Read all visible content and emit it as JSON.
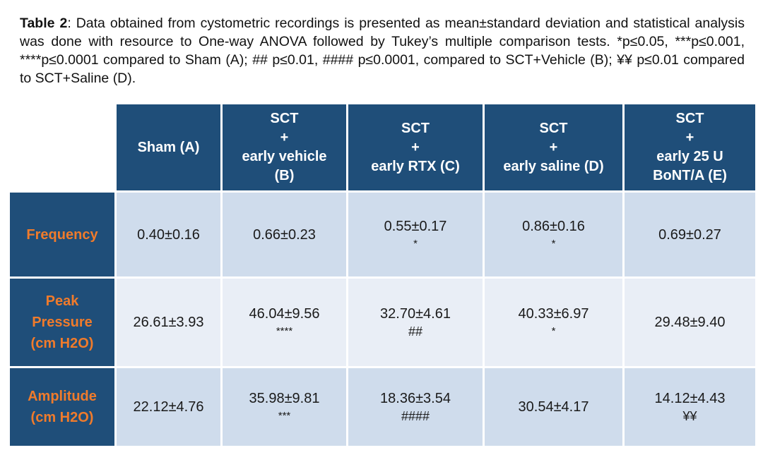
{
  "caption": {
    "lead": "Table 2",
    "text": ": Data obtained from cystometric recordings is presented as mean±standard deviation and statistical analysis was done with resource to One-way ANOVA followed by Tukey’s multiple comparison tests. *p≤0.05, ***p≤0.001, ****p≤0.0001 compared to Sham (A); ## p≤0.01, #### p≤0.0001, compared to SCT+Vehicle (B); ¥¥ p≤0.01 compared to SCT+Saline (D)."
  },
  "table": {
    "columns": [
      {
        "lines": [
          "Sham (A)"
        ]
      },
      {
        "lines": [
          "SCT",
          "+",
          "early vehicle",
          "(B)"
        ]
      },
      {
        "lines": [
          "SCT",
          "+",
          "early RTX (C)"
        ]
      },
      {
        "lines": [
          "SCT",
          "+",
          "early saline (D)"
        ]
      },
      {
        "lines": [
          "SCT",
          "+",
          "early 25 U",
          "BoNT/A (E)"
        ]
      }
    ],
    "rows": [
      {
        "label": [
          "Frequency"
        ],
        "cells": [
          {
            "value": "0.40±0.16",
            "mark": ""
          },
          {
            "value": "0.66±0.23",
            "mark": ""
          },
          {
            "value": "0.55±0.17",
            "mark": "*"
          },
          {
            "value": "0.86±0.16",
            "mark": "*"
          },
          {
            "value": "0.69±0.27",
            "mark": ""
          }
        ]
      },
      {
        "label": [
          "Peak",
          "Pressure",
          "(cm H2O)"
        ],
        "cells": [
          {
            "value": "26.61±3.93",
            "mark": ""
          },
          {
            "value": "46.04±9.56",
            "mark": "****"
          },
          {
            "value": "32.70±4.61",
            "mark": "##"
          },
          {
            "value": "40.33±6.97",
            "mark": "*"
          },
          {
            "value": "29.48±9.40",
            "mark": ""
          }
        ]
      },
      {
        "label": [
          "Amplitude",
          "(cm H2O)"
        ],
        "cells": [
          {
            "value": "22.12±4.76",
            "mark": ""
          },
          {
            "value": "35.98±9.81",
            "mark": "***"
          },
          {
            "value": "18.36±3.54",
            "mark": "####"
          },
          {
            "value": "30.54±4.17",
            "mark": ""
          },
          {
            "value": "14.12±4.43",
            "mark": "¥¥"
          }
        ]
      }
    ]
  }
}
